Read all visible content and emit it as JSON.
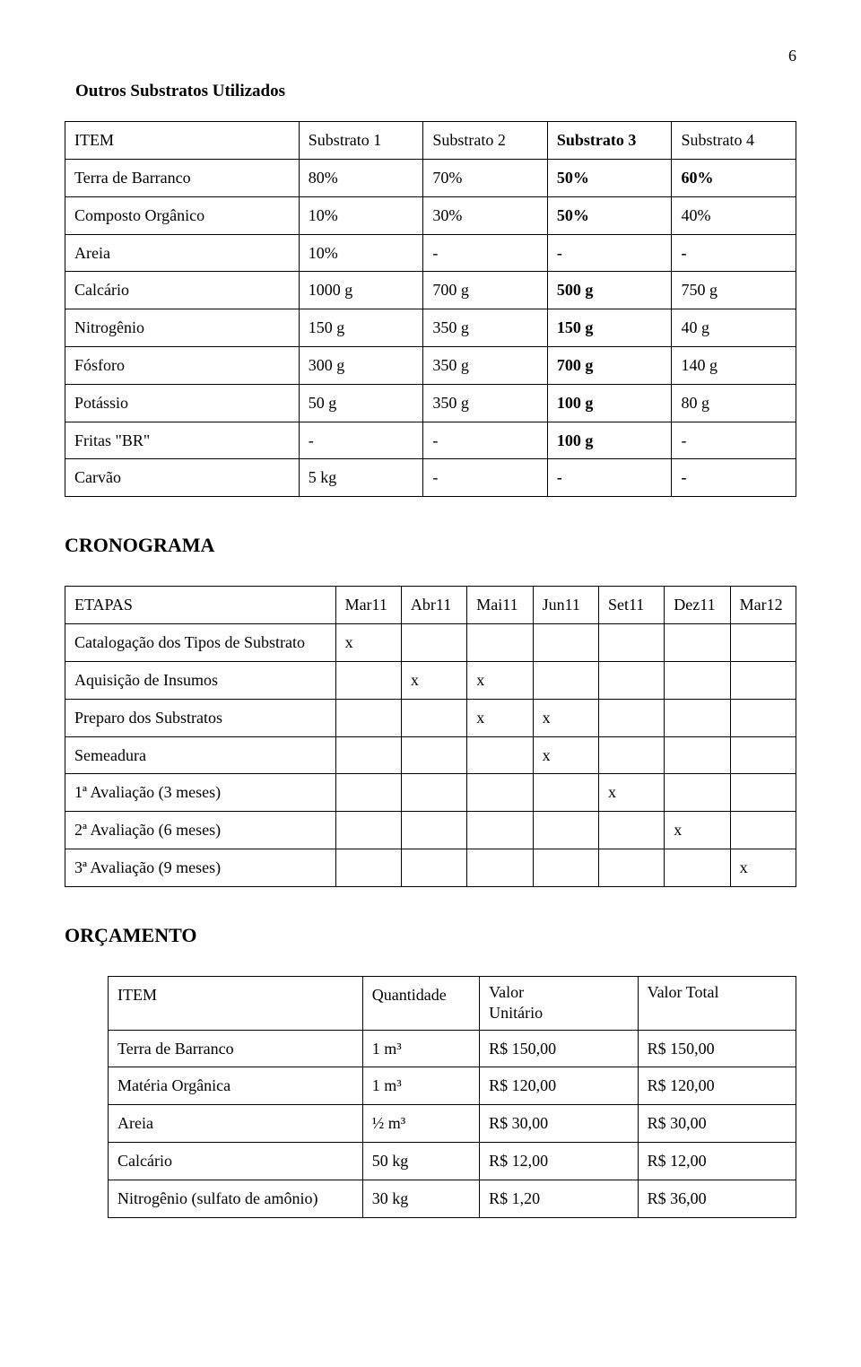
{
  "page_number": "6",
  "section1": {
    "title": "Outros Substratos Utilizados",
    "header": [
      "ITEM",
      "Substrato 1",
      "Substrato 2",
      "Substrato 3",
      "Substrato 4"
    ],
    "rows": [
      {
        "item": "Terra de Barranco",
        "c1": "80%",
        "c2": "70%",
        "c3": "50%",
        "c4": "60%",
        "bold": [
          "c3",
          "c4"
        ]
      },
      {
        "item": "Composto Orgânico",
        "c1": "10%",
        "c2": "30%",
        "c3": "50%",
        "c4": "40%",
        "bold": [
          "c3"
        ]
      },
      {
        "item": "Areia",
        "c1": "10%",
        "c2": "-",
        "c3": "-",
        "c4": "-",
        "bold": [
          "c3",
          "c4"
        ]
      },
      {
        "item": "Calcário",
        "c1": "1000 g",
        "c2": "700 g",
        "c3": "500 g",
        "c4": "750 g",
        "bold": [
          "c3"
        ]
      },
      {
        "item": "Nitrogênio",
        "c1": "150 g",
        "c2": "350 g",
        "c3": "150 g",
        "c4": "40 g",
        "bold": [
          "c3"
        ]
      },
      {
        "item": "Fósforo",
        "c1": "300 g",
        "c2": "350 g",
        "c3": "700 g",
        "c4": "140 g",
        "bold": [
          "c3"
        ]
      },
      {
        "item": "Potássio",
        "c1": "50 g",
        "c2": "350 g",
        "c3": "100 g",
        "c4": "80 g",
        "bold": [
          "c3"
        ]
      },
      {
        "item": "Fritas \"BR\"",
        "c1": "-",
        "c2": "-",
        "c3": "100 g",
        "c4": "-",
        "bold": [
          "c3"
        ]
      },
      {
        "item": "Carvão",
        "c1": "5 kg",
        "c2": "-",
        "c3": "-",
        "c4": "-",
        "bold": [
          "c3",
          "c4"
        ]
      }
    ]
  },
  "section2": {
    "title": "CRONOGRAMA",
    "header": [
      "ETAPAS",
      "Mar11",
      "Abr11",
      "Mai11",
      "Jun11",
      "Set11",
      "Dez11",
      "Mar12"
    ],
    "rows": [
      {
        "label": "Catalogação dos Tipos de Substrato",
        "marks": [
          "x",
          "",
          "",
          "",
          "",
          "",
          ""
        ]
      },
      {
        "label": "Aquisição de Insumos",
        "marks": [
          "",
          "x",
          "x",
          "",
          "",
          "",
          ""
        ]
      },
      {
        "label": "Preparo dos Substratos",
        "marks": [
          "",
          "",
          "x",
          "x",
          "",
          "",
          ""
        ]
      },
      {
        "label": "Semeadura",
        "marks": [
          "",
          "",
          "",
          "x",
          "",
          "",
          ""
        ]
      },
      {
        "label": "1ª Avaliação (3 meses)",
        "marks": [
          "",
          "",
          "",
          "",
          "x",
          "",
          ""
        ]
      },
      {
        "label": "2ª Avaliação (6 meses)",
        "marks": [
          "",
          "",
          "",
          "",
          "",
          "x",
          ""
        ]
      },
      {
        "label": "3ª Avaliação (9 meses)",
        "marks": [
          "",
          "",
          "",
          "",
          "",
          "",
          "x"
        ]
      }
    ]
  },
  "section3": {
    "title": "ORÇAMENTO",
    "header": [
      "ITEM",
      "Quantidade",
      "Valor Unitário",
      "Valor Total"
    ],
    "rows": [
      {
        "item": "Terra de Barranco",
        "qty": "1 m³",
        "unit": "R$ 150,00",
        "total": "R$ 150,00"
      },
      {
        "item": "Matéria Orgânica",
        "qty": "1 m³",
        "unit": "R$ 120,00",
        "total": "R$ 120,00"
      },
      {
        "item": "Areia",
        "qty": "½ m³",
        "unit": "R$ 30,00",
        "total": "R$ 30,00"
      },
      {
        "item": "Calcário",
        "qty": "50 kg",
        "unit": "R$ 12,00",
        "total": "R$ 12,00"
      },
      {
        "item": "Nitrogênio (sulfato de amônio)",
        "qty": "30 kg",
        "unit": "R$ 1,20",
        "total": "R$ 36,00"
      }
    ]
  }
}
